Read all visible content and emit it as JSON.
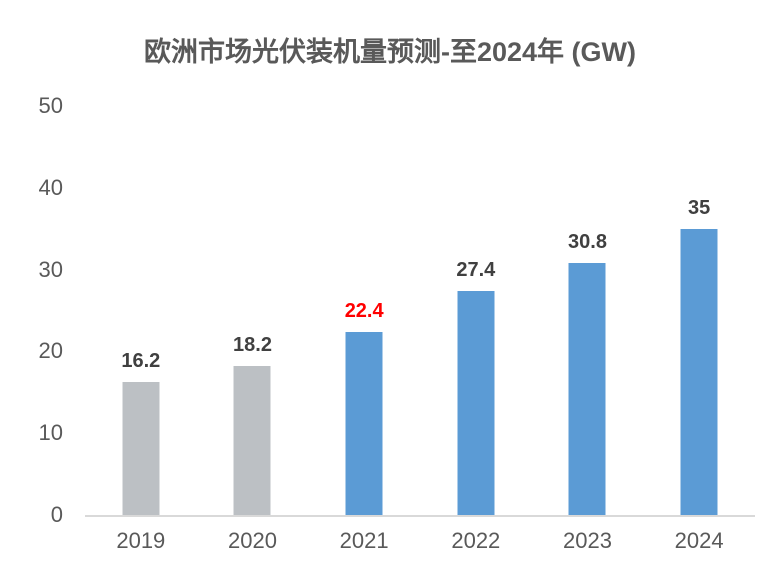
{
  "chart_data": {
    "type": "bar",
    "title": "欧洲市场光伏装机量预测-至2024年 (GW)",
    "categories": [
      "2019",
      "2020",
      "2021",
      "2022",
      "2023",
      "2024"
    ],
    "values": [
      16.2,
      18.2,
      22.4,
      27.4,
      30.8,
      35
    ],
    "labels": [
      "16.2",
      "18.2",
      "22.4",
      "27.4",
      "30.8",
      "35"
    ],
    "bar_colors": [
      "#BCC0C4",
      "#BCC0C4",
      "#5B9BD5",
      "#5B9BD5",
      "#5B9BD5",
      "#5B9BD5"
    ],
    "label_colors": [
      "#404040",
      "#404040",
      "#FF0000",
      "#404040",
      "#404040",
      "#404040"
    ],
    "xlabel": "",
    "ylabel": "",
    "ylim": [
      0,
      50
    ],
    "yticks": [
      0,
      10,
      20,
      30,
      40,
      50
    ],
    "grid": false,
    "legend": null,
    "highlighted_category": "2021"
  },
  "colors": {
    "accent_blue": "#5B9BD5",
    "bar_gray": "#BCC0C4",
    "highlight_red": "#FF0000",
    "axis_text": "#595959",
    "value_text": "#404040",
    "axis_line": "#D9D9D9",
    "background": "#FFFFFF"
  }
}
